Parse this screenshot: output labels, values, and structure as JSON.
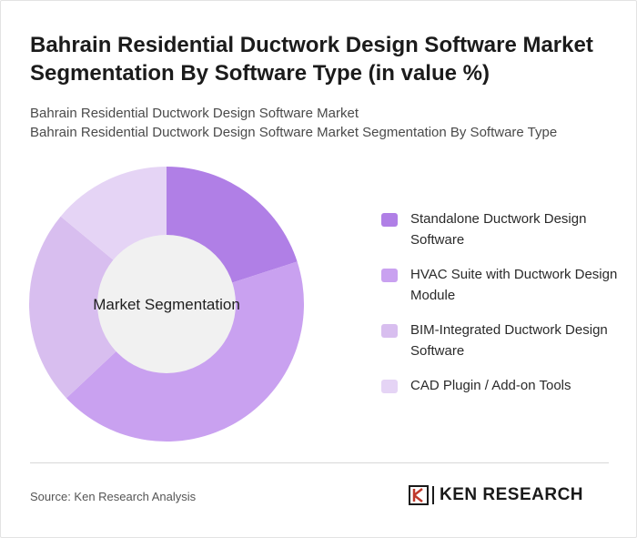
{
  "header": {
    "title": "Bahrain Residential Ductwork Design Software Market Segmentation By Software Type (in value %)",
    "subtitle_line1": "Bahrain Residential Ductwork Design Software Market",
    "subtitle_line2": "Bahrain Residential Ductwork Design Software Market Segmentation By Software Type"
  },
  "chart_data": {
    "type": "pie",
    "donut": true,
    "center_label": "Market Segmentation",
    "categories": [
      "Standalone Ductwork Design Software",
      "HVAC Suite with Ductwork Design Module",
      "BIM-Integrated Ductwork Design Software",
      "CAD Plugin / Add-on Tools"
    ],
    "values": [
      20,
      43,
      23,
      14
    ],
    "colors": [
      "#b07fe6",
      "#c9a1f0",
      "#d8beef",
      "#e5d4f5"
    ],
    "center_fill": "#f1f1f1",
    "legend_position": "right"
  },
  "footer": {
    "source": "Source: Ken Research Analysis",
    "brand": "KEN RESEARCH",
    "brand_icon": "ken-research-k-logo"
  }
}
